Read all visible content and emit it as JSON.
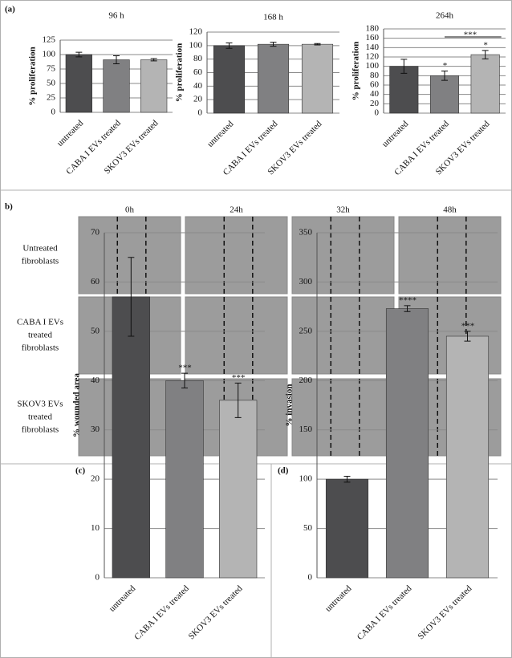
{
  "panels": {
    "a": "(a)",
    "b": "b)",
    "c": "(c)",
    "d": "(d)"
  },
  "micrographs": {
    "times": [
      "0h",
      "24h",
      "32h",
      "48h"
    ],
    "rows": [
      [
        "Untreated",
        "fibroblasts"
      ],
      [
        "CABA I EVs",
        "treated",
        "fibroblasts"
      ],
      [
        "SKOV3 EVs",
        "treated",
        "fibroblasts"
      ]
    ]
  },
  "chart_data": [
    {
      "type": "bar",
      "title": "96 h",
      "ylabel": "% proliferation",
      "categories": [
        "untreated",
        "CABA I EVs treated",
        "SKOV3 EVs treated"
      ],
      "values": [
        100,
        91,
        91
      ],
      "errors": [
        4,
        7,
        2
      ],
      "colors": [
        "#4d4d4f",
        "#808082",
        "#b4b4b4"
      ],
      "ylim": [
        0,
        125
      ],
      "yticks": [
        0,
        25,
        50,
        75,
        100,
        125
      ],
      "grid": true
    },
    {
      "type": "bar",
      "title": "168 h",
      "ylabel": "% proliferation",
      "categories": [
        "untreated",
        "CABA I EVs treated",
        "SKOV3 EVs treated"
      ],
      "values": [
        100,
        102,
        102
      ],
      "errors": [
        4,
        3,
        1
      ],
      "colors": [
        "#4d4d4f",
        "#808082",
        "#b4b4b4"
      ],
      "ylim": [
        0,
        120
      ],
      "yticks": [
        0,
        20,
        40,
        60,
        80,
        100,
        120
      ],
      "grid": true
    },
    {
      "type": "bar",
      "title": "264h",
      "ylabel": "% proliferation",
      "categories": [
        "untreated",
        "CABA I EVs treated",
        "SKOV3 EVs treated"
      ],
      "values": [
        100,
        80,
        125
      ],
      "errors": [
        15,
        10,
        9
      ],
      "colors": [
        "#4d4d4f",
        "#808082",
        "#b4b4b4"
      ],
      "significance": [
        null,
        "*",
        "*"
      ],
      "bracket_label": "***",
      "ylim": [
        0,
        180
      ],
      "yticks": [
        0,
        20,
        40,
        60,
        80,
        100,
        120,
        140,
        160,
        180
      ],
      "grid": true
    },
    {
      "type": "bar",
      "ylabel": "% wounded area",
      "categories": [
        "untreated",
        "CABA I EVs treated",
        "SKOV3 EVs treated"
      ],
      "values": [
        57,
        40,
        36
      ],
      "errors": [
        8,
        1.5,
        3.5
      ],
      "colors": [
        "#4d4d4f",
        "#808082",
        "#b4b4b4"
      ],
      "significance": [
        null,
        "***",
        "***"
      ],
      "ylim": [
        0,
        70
      ],
      "yticks": [
        0,
        10,
        20,
        30,
        40,
        50,
        60,
        70
      ],
      "grid": true
    },
    {
      "type": "bar",
      "ylabel": "% invasion",
      "categories": [
        "untreated",
        "CABA I EVs treated",
        "SKOV3 EVs treated"
      ],
      "values": [
        100,
        273,
        245
      ],
      "errors": [
        3,
        3,
        5
      ],
      "colors": [
        "#4d4d4f",
        "#808082",
        "#b4b4b4"
      ],
      "significance": [
        null,
        "****",
        "***"
      ],
      "ylim": [
        0,
        350
      ],
      "yticks": [
        0,
        50,
        100,
        150,
        200,
        250,
        300,
        350
      ],
      "grid": true
    }
  ]
}
